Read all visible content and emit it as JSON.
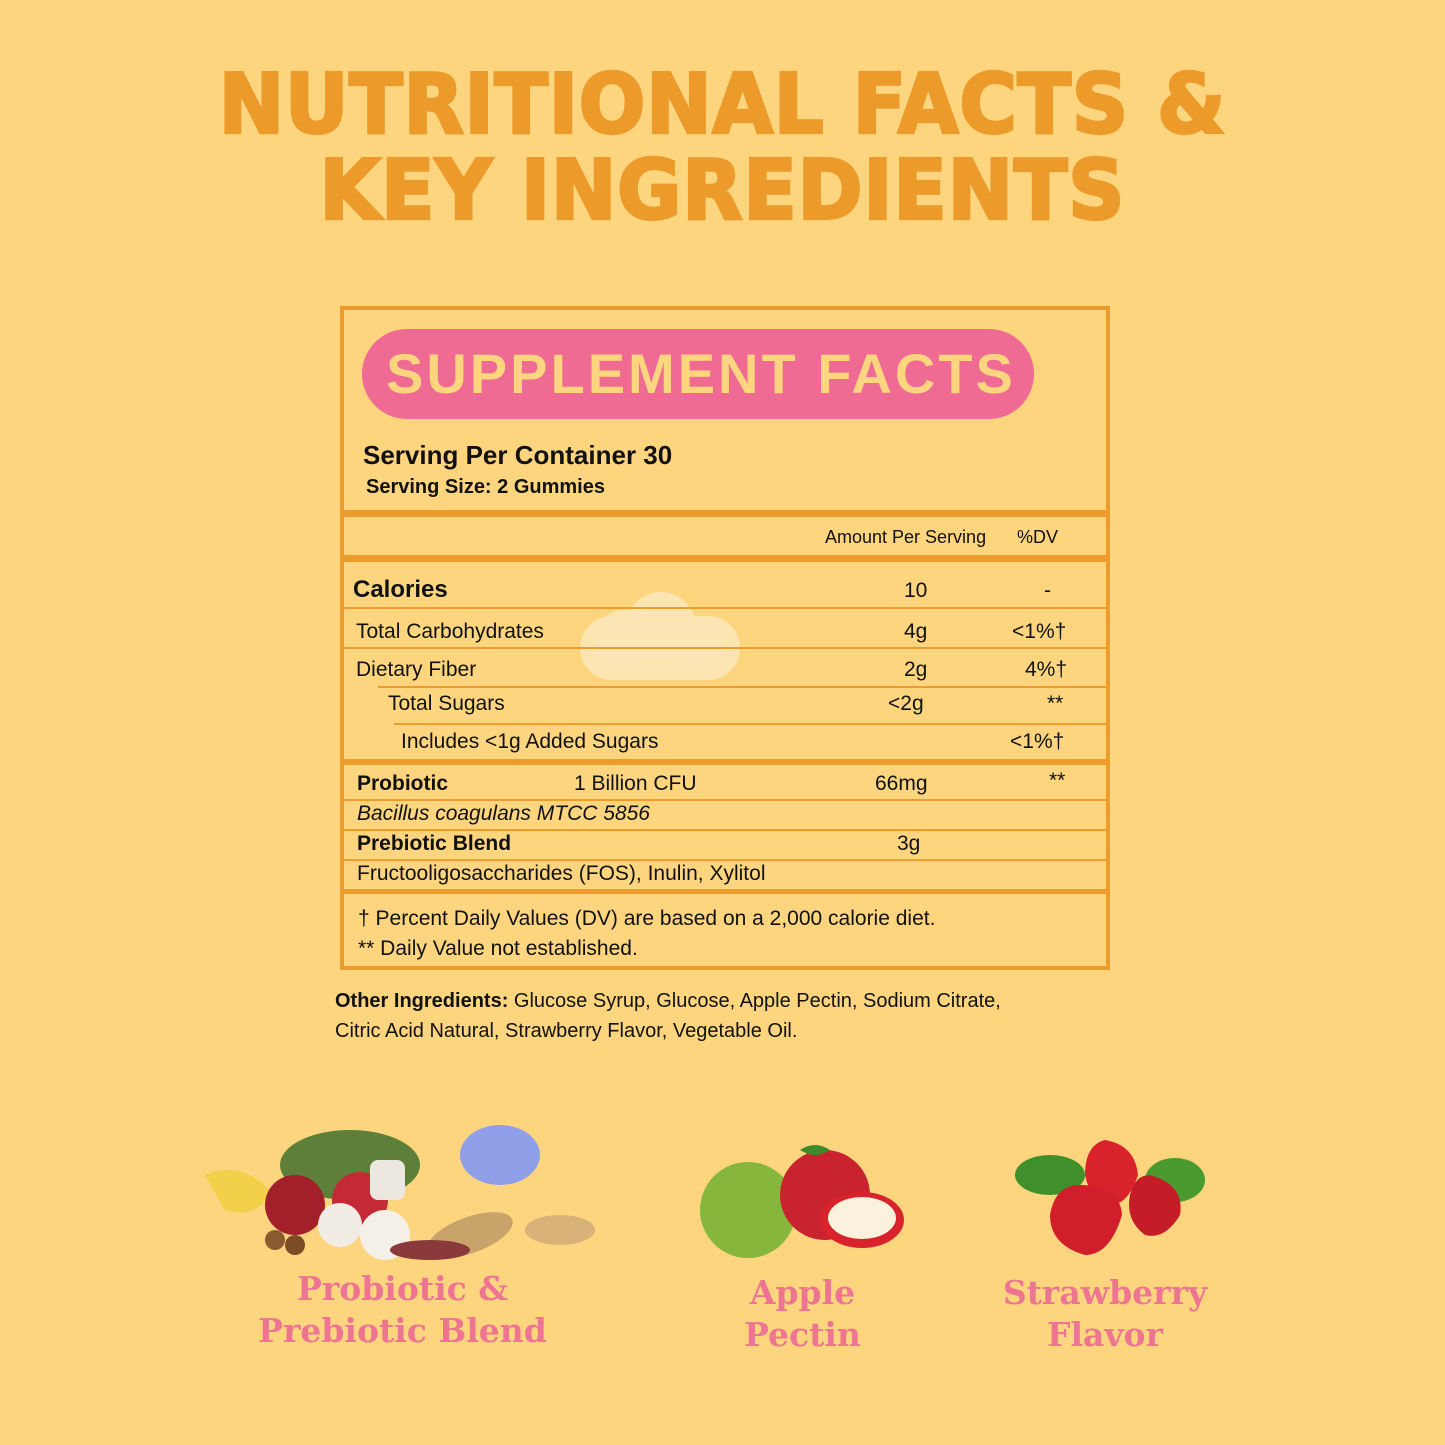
{
  "header": {
    "line1": "NUTRITIONAL FACTS &",
    "line2": "KEY INGREDIENTS"
  },
  "facts": {
    "title": "SUPPLEMENT FACTS",
    "servings": "Serving Per Container 30",
    "serving_size": "Serving Size: 2 Gummies",
    "col_amount": "Amount Per Serving",
    "col_dv": "%DV",
    "rows": [
      {
        "label": "Calories",
        "amount": "10",
        "dv": "-"
      },
      {
        "label": "Total Carbohydrates",
        "amount": "4g",
        "dv": "<1%†"
      },
      {
        "label": "Dietary Fiber",
        "amount": "2g",
        "dv": "4%†"
      },
      {
        "label": "Total Sugars",
        "amount": "<2g",
        "dv": "**"
      },
      {
        "label": "Includes <1g Added Sugars",
        "amount": "",
        "dv": "<1%†"
      }
    ],
    "probiotic": {
      "label": "Probiotic",
      "cfu": "1 Billion CFU",
      "amount": "66mg",
      "dv": "**",
      "strain": "Bacillus coagulans MTCC 5856"
    },
    "prebiotic": {
      "label": "Prebiotic Blend",
      "amount": "3g",
      "ingredients": "Fructooligosaccharides (FOS), Inulin, Xylitol"
    },
    "footnote1": "† Percent Daily Values (DV) are based on a 2,000 calorie diet.",
    "footnote2": "** Daily Value not established."
  },
  "other": {
    "label": "Other Ingredients:",
    "line1": "Glucose Syrup, Glucose, Apple Pectin, Sodium Citrate,",
    "line2": "Citric Acid Natural, Strawberry Flavor, Vegetable Oil."
  },
  "ingredients": [
    {
      "line1": "Probiotic &",
      "line2": "Prebiotic Blend"
    },
    {
      "line1": "Apple",
      "line2": "Pectin"
    },
    {
      "line1": "Strawberry",
      "line2": "Flavor"
    }
  ],
  "colors": {
    "background": "#fdd57f",
    "accent": "#ec9b2a",
    "pink": "#ef6b93"
  }
}
